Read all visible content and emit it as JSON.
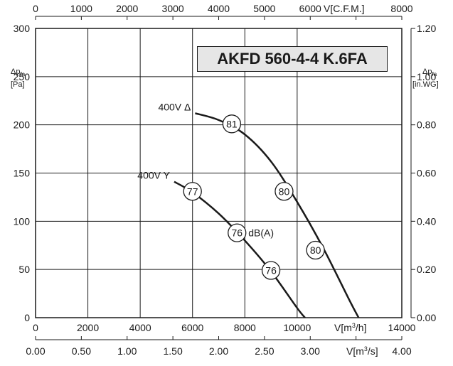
{
  "chart_data": {
    "type": "line",
    "title": "AKFD 560-4-4 K.6FA",
    "x_axis_bottom": {
      "unit_label": "V[m3/h]",
      "range": [
        0,
        14000
      ],
      "ticks": [
        "0",
        "2000",
        "4000",
        "6000",
        "8000",
        "10000",
        "14000"
      ]
    },
    "x_axis_bottom2": {
      "unit_label": "V[m3/s]",
      "range": [
        0,
        4.0
      ],
      "ticks": [
        "0.00",
        "0.50",
        "1.00",
        "1.50",
        "2.00",
        "2.50",
        "3.00",
        "4.00"
      ]
    },
    "x_axis_top": {
      "unit_label": "V[C.F.M.]",
      "range": [
        0,
        8000
      ],
      "ticks": [
        "0",
        "1000",
        "2000",
        "3000",
        "4000",
        "5000",
        "6000",
        "8000"
      ]
    },
    "y_axis_left": {
      "label": "Δp",
      "label_sub": "fa",
      "unit": "[Pa]",
      "range": [
        0,
        300
      ],
      "ticks": [
        "0",
        "50",
        "100",
        "150",
        "200",
        "250",
        "300"
      ]
    },
    "y_axis_right": {
      "label": "Δp",
      "label_sub": "fa",
      "unit": "[in.WG]",
      "range": [
        0,
        1.2
      ],
      "ticks": [
        "0.00",
        "0.20",
        "0.40",
        "0.60",
        "0.80",
        "1.00",
        "1.20"
      ]
    },
    "grid": true,
    "series": [
      {
        "name": "400V Δ",
        "x": [
          6100,
          7000,
          8000,
          9000,
          10000,
          11000,
          12000,
          12350
        ],
        "y": [
          212,
          205,
          190,
          162,
          120,
          72,
          18,
          0
        ],
        "markers": [
          {
            "x": 7500,
            "y": 201,
            "label": "81"
          },
          {
            "x": 9500,
            "y": 131,
            "label": "80"
          },
          {
            "x": 10700,
            "y": 70,
            "label": "80"
          }
        ]
      },
      {
        "name": "400V Y",
        "x": [
          5300,
          6000,
          7000,
          8000,
          9000,
          10000,
          10300
        ],
        "y": [
          141,
          130,
          108,
          80,
          48,
          10,
          0
        ],
        "markers": [
          {
            "x": 6000,
            "y": 131,
            "label": "77"
          },
          {
            "x": 7700,
            "y": 88,
            "label": "76"
          },
          {
            "x": 9000,
            "y": 49,
            "label": "76"
          }
        ]
      }
    ],
    "annotation": "dB(A)"
  }
}
